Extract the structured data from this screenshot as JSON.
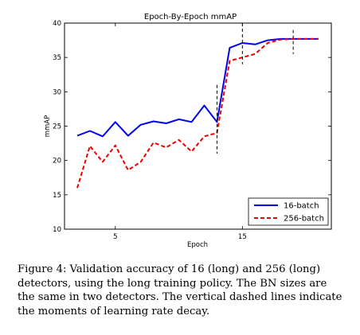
{
  "chart_data": {
    "type": "line",
    "title": "Epoch-By-Epoch mmAP",
    "xlabel": "Epoch",
    "ylabel": "mmAP",
    "xlim": [
      1,
      22
    ],
    "ylim": [
      10,
      40
    ],
    "xticks": [
      5,
      15
    ],
    "yticks": [
      10,
      15,
      20,
      25,
      30,
      35,
      40
    ],
    "grid": false,
    "legend_position": "lower-right",
    "series": [
      {
        "name": "16-batch",
        "color": "#0000ee",
        "style": "solid",
        "x": [
          2,
          3,
          4,
          5,
          6,
          7,
          8,
          9,
          10,
          11,
          12,
          13,
          14,
          15,
          16,
          17,
          18,
          19,
          20,
          21
        ],
        "y": [
          23.6,
          24.3,
          23.5,
          25.6,
          23.6,
          25.2,
          25.7,
          25.4,
          26.0,
          25.6,
          28.0,
          25.6,
          36.4,
          37.1,
          36.9,
          37.5,
          37.7,
          37.7,
          37.7,
          37.7
        ]
      },
      {
        "name": "256-batch",
        "color": "#ee0000",
        "style": "dashed",
        "x": [
          2,
          3,
          4,
          5,
          6,
          7,
          8,
          9,
          10,
          11,
          12,
          13,
          14,
          15,
          16,
          17,
          18,
          19,
          20,
          21
        ],
        "y": [
          16.0,
          22.1,
          19.8,
          22.2,
          18.6,
          19.8,
          22.6,
          21.9,
          23.0,
          21.3,
          23.5,
          24.0,
          34.5,
          35.0,
          35.5,
          37.1,
          37.6,
          37.7,
          37.7,
          37.7
        ]
      }
    ],
    "decay_markers": [
      {
        "x": 13,
        "y_range": [
          21,
          31
        ]
      },
      {
        "x": 15,
        "y_range": [
          34,
          40
        ]
      },
      {
        "x": 19,
        "y_range": [
          35.5,
          39
        ]
      }
    ]
  },
  "caption": {
    "label": "Figure 4:",
    "text": "Validation accuracy of 16 (long) and 256 (long) detectors, using the long training policy. The BN sizes are the same in two detectors. The vertical dashed lines indicate the moments of learning rate decay."
  }
}
